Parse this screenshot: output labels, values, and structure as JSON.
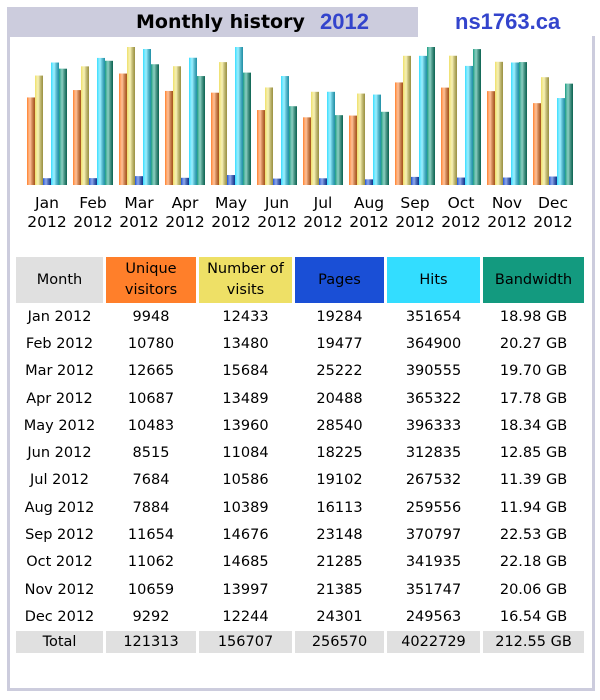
{
  "header": {
    "title": "Monthly history",
    "year": "2012",
    "site": "ns1763.ca"
  },
  "colors": {
    "visitors": "#ff7f2a",
    "visits": "#eee066",
    "pages": "#1a4fd6",
    "hits": "#33ddff",
    "bandwidth": "#139a7f",
    "header_bg": "#ccccdd"
  },
  "chart_data": {
    "type": "bar",
    "title": "Monthly history 2012",
    "categories": [
      "Jan",
      "Feb",
      "Mar",
      "Apr",
      "May",
      "Jun",
      "Jul",
      "Aug",
      "Sep",
      "Oct",
      "Nov",
      "Dec"
    ],
    "category_year": "2012",
    "series": [
      {
        "name": "Unique visitors",
        "values": [
          9948,
          10780,
          12665,
          10687,
          10483,
          8515,
          7684,
          7884,
          11654,
          11062,
          10659,
          9292
        ]
      },
      {
        "name": "Number of visits",
        "values": [
          12433,
          13480,
          15684,
          13489,
          13960,
          11084,
          10586,
          10389,
          14676,
          14685,
          13997,
          12244
        ]
      },
      {
        "name": "Pages",
        "values": [
          19284,
          19477,
          25222,
          20488,
          28540,
          18225,
          19102,
          16113,
          23148,
          21285,
          21385,
          24301
        ]
      },
      {
        "name": "Hits",
        "values": [
          351654,
          364900,
          390555,
          365322,
          396333,
          312835,
          267532,
          259556,
          370797,
          341935,
          351747,
          249563
        ]
      },
      {
        "name": "Bandwidth (GB)",
        "values": [
          18.98,
          20.27,
          19.7,
          17.78,
          18.34,
          12.85,
          11.39,
          11.94,
          22.53,
          22.18,
          20.06,
          16.54
        ]
      }
    ],
    "legend": "table-below"
  },
  "table": {
    "headers": [
      "Month",
      "Unique visitors",
      "Number of visits",
      "Pages",
      "Hits",
      "Bandwidth"
    ],
    "rows": [
      [
        "Jan 2012",
        "9948",
        "12433",
        "19284",
        "351654",
        "18.98 GB"
      ],
      [
        "Feb 2012",
        "10780",
        "13480",
        "19477",
        "364900",
        "20.27 GB"
      ],
      [
        "Mar 2012",
        "12665",
        "15684",
        "25222",
        "390555",
        "19.70 GB"
      ],
      [
        "Apr 2012",
        "10687",
        "13489",
        "20488",
        "365322",
        "17.78 GB"
      ],
      [
        "May 2012",
        "10483",
        "13960",
        "28540",
        "396333",
        "18.34 GB"
      ],
      [
        "Jun 2012",
        "8515",
        "11084",
        "18225",
        "312835",
        "12.85 GB"
      ],
      [
        "Jul 2012",
        "7684",
        "10586",
        "19102",
        "267532",
        "11.39 GB"
      ],
      [
        "Aug 2012",
        "7884",
        "10389",
        "16113",
        "259556",
        "11.94 GB"
      ],
      [
        "Sep 2012",
        "11654",
        "14676",
        "23148",
        "370797",
        "22.53 GB"
      ],
      [
        "Oct 2012",
        "11062",
        "14685",
        "21285",
        "341935",
        "22.18 GB"
      ],
      [
        "Nov 2012",
        "10659",
        "13997",
        "21385",
        "351747",
        "20.06 GB"
      ],
      [
        "Dec 2012",
        "9292",
        "12244",
        "24301",
        "249563",
        "16.54 GB"
      ]
    ],
    "total": [
      "Total",
      "121313",
      "156707",
      "256570",
      "4022729",
      "212.55 GB"
    ]
  }
}
